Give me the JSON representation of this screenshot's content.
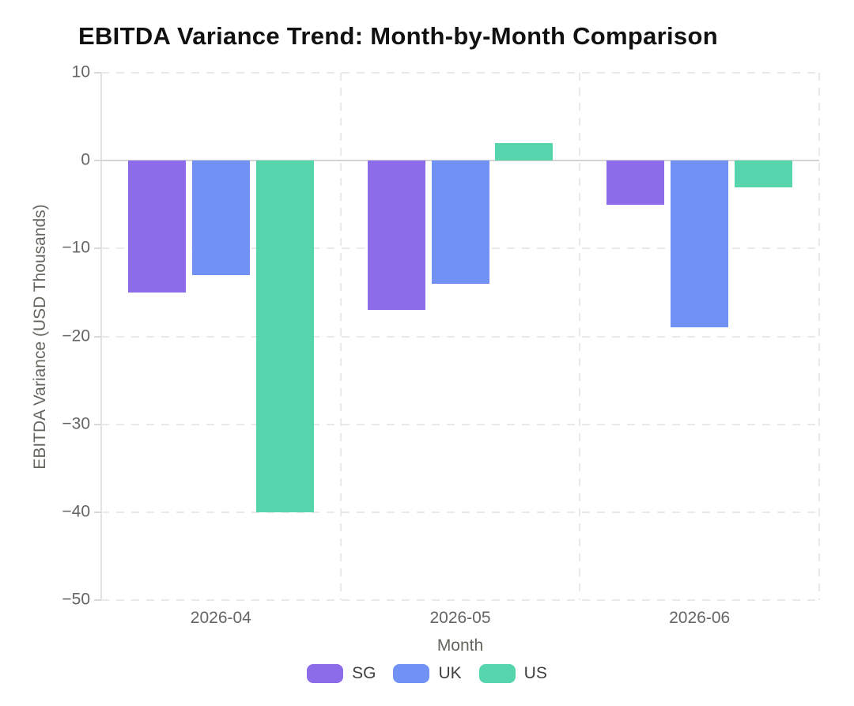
{
  "chart_data": {
    "type": "bar",
    "title": "EBITDA Variance Trend: Month-by-Month Comparison",
    "xlabel": "Month",
    "ylabel": "EBITDA Variance (USD Thousands)",
    "categories": [
      "2026-04",
      "2026-05",
      "2026-06"
    ],
    "series": [
      {
        "name": "SG",
        "color": "#8d6cea",
        "values": [
          -15,
          -17,
          -5
        ]
      },
      {
        "name": "UK",
        "color": "#7191f5",
        "values": [
          -13,
          -14,
          -19
        ]
      },
      {
        "name": "US",
        "color": "#56d5ad",
        "values": [
          -40,
          2,
          -3
        ]
      }
    ],
    "yticks": [
      10,
      0,
      -10,
      -20,
      -30,
      -40,
      -50
    ],
    "ylim": [
      -50,
      10
    ],
    "grid": true,
    "gridline_style": "dashed",
    "legend_position": "bottom",
    "colors": {
      "grid": "#e9e9e9",
      "zero_line": "#d4d4d4",
      "axis_line": "#e3e3e3",
      "tick_text": "#656565",
      "axis_title_text": "#66665f",
      "legend_text": "#3f3f3f",
      "title_text": "#111111",
      "background": "#ffffff"
    }
  }
}
